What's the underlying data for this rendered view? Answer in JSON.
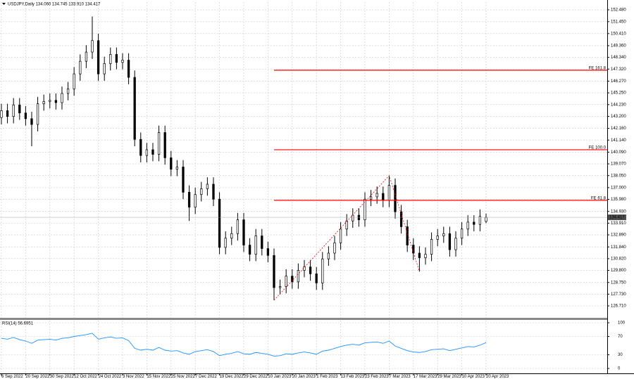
{
  "chart_data": [
    {
      "type": "candlestick",
      "title": "USDJPY,Daily  134.060 134.745 133.910 134.417",
      "open": [
        143.1,
        143.7,
        143.2,
        144.2,
        143.5,
        143.0,
        142.5,
        144.3,
        144.5,
        144.6,
        144.4,
        145.2,
        145.6,
        146.9,
        148.0,
        148.8,
        149.8,
        146.9,
        147.8,
        148.6,
        147.9,
        148.1,
        146.6,
        141.2,
        139.8,
        140.3,
        139.9,
        141.8,
        139.6,
        138.6,
        138.8,
        136.6,
        135.3,
        136.4,
        136.9,
        137.3,
        136.0,
        131.8,
        132.6,
        133.0,
        134.2,
        132.0,
        131.2,
        132.8,
        131.7,
        131.1,
        128.3,
        128.4,
        129.3,
        128.8,
        129.8,
        130.1,
        129.5,
        128.7,
        130.8,
        131.3,
        132.2,
        133.4,
        134.1,
        134.6,
        134.2,
        136.0,
        136.2,
        136.5,
        135.9,
        137.2,
        134.9,
        133.6,
        132.0,
        131.3,
        130.9,
        131.2,
        132.5,
        132.8,
        133.0,
        131.6,
        132.6,
        133.4,
        134.0,
        133.8,
        134.06
      ],
      "high": [
        144.3,
        144.3,
        144.8,
        144.8,
        144.1,
        143.6,
        144.9,
        145.1,
        145.2,
        145.2,
        145.8,
        146.2,
        147.5,
        148.6,
        149.4,
        151.9,
        150.4,
        148.4,
        149.2,
        149.2,
        148.7,
        148.7,
        147.2,
        141.8,
        140.9,
        140.9,
        142.4,
        142.4,
        140.2,
        139.4,
        139.4,
        137.2,
        137.0,
        137.5,
        137.9,
        137.9,
        136.6,
        133.2,
        133.6,
        134.8,
        134.8,
        132.6,
        133.4,
        133.4,
        132.3,
        131.7,
        129.0,
        129.9,
        129.9,
        130.4,
        130.7,
        130.7,
        130.1,
        131.4,
        131.9,
        132.8,
        134.0,
        134.7,
        135.2,
        135.2,
        136.6,
        136.8,
        137.1,
        137.1,
        138.05,
        137.8,
        135.5,
        134.2,
        132.6,
        131.9,
        131.8,
        133.1,
        133.4,
        133.6,
        133.6,
        133.2,
        134.0,
        134.6,
        134.6,
        135.1,
        134.745
      ],
      "low": [
        142.5,
        142.6,
        142.6,
        142.9,
        142.4,
        140.6,
        141.9,
        143.7,
        143.9,
        143.8,
        143.8,
        144.6,
        145.0,
        146.3,
        147.4,
        148.2,
        146.3,
        146.3,
        147.2,
        147.3,
        147.3,
        146.0,
        140.6,
        139.2,
        139.2,
        139.3,
        139.3,
        139.0,
        138.0,
        138.0,
        136.0,
        134.1,
        134.7,
        135.8,
        136.3,
        135.4,
        131.2,
        131.2,
        132.0,
        132.4,
        131.4,
        130.6,
        130.6,
        131.1,
        130.5,
        127.2,
        127.7,
        127.8,
        128.2,
        128.2,
        129.2,
        128.9,
        128.1,
        128.1,
        130.2,
        130.7,
        131.6,
        132.8,
        133.5,
        133.6,
        133.6,
        135.4,
        135.6,
        135.3,
        135.3,
        134.3,
        133.0,
        131.4,
        130.7,
        129.7,
        130.3,
        130.6,
        131.9,
        132.2,
        131.0,
        131.0,
        132.0,
        132.8,
        133.2,
        133.2,
        133.91
      ],
      "close": [
        143.7,
        143.2,
        144.2,
        143.5,
        143.0,
        142.5,
        144.3,
        144.5,
        144.6,
        144.4,
        145.2,
        145.6,
        146.9,
        148.0,
        148.8,
        149.8,
        146.9,
        147.8,
        148.6,
        147.9,
        148.1,
        146.6,
        141.2,
        139.8,
        140.3,
        139.9,
        141.8,
        139.6,
        138.6,
        138.8,
        136.6,
        135.3,
        136.4,
        136.9,
        137.3,
        136.0,
        131.8,
        132.6,
        133.0,
        134.2,
        132.0,
        131.2,
        132.8,
        131.7,
        131.1,
        128.3,
        128.4,
        129.3,
        128.8,
        129.8,
        130.1,
        129.5,
        128.7,
        130.8,
        131.3,
        132.2,
        133.4,
        134.1,
        134.6,
        134.2,
        136.0,
        136.2,
        136.5,
        135.9,
        137.2,
        134.9,
        133.6,
        132.0,
        131.3,
        130.9,
        131.2,
        132.5,
        132.8,
        133.0,
        131.6,
        132.6,
        133.4,
        134.0,
        133.8,
        134.5,
        134.417
      ],
      "up_color": "#ffffff",
      "down_color": "#000000",
      "outline_color": "#000000",
      "xlim": [
        -0.23,
        100
      ],
      "xticks": [
        {
          "value": 0,
          "label": "6 Sep 2022"
        },
        {
          "value": 4,
          "label": "20 Sep 2022"
        },
        {
          "value": 8,
          "label": "30 Sep 2022"
        },
        {
          "value": 12,
          "label": "12 Oct 2022"
        },
        {
          "value": 16,
          "label": "24 Oct 2022"
        },
        {
          "value": 20,
          "label": "3 Nov 2022"
        },
        {
          "value": 24,
          "label": "15 Nov 2022"
        },
        {
          "value": 28,
          "label": "25 Nov 2022"
        },
        {
          "value": 32,
          "label": "7 Dec 2022"
        },
        {
          "value": 36,
          "label": "19 Dec 2022"
        },
        {
          "value": 40,
          "label": "29 Dec 2022"
        },
        {
          "value": 44,
          "label": "10 Jan 2023"
        },
        {
          "value": 48,
          "label": "20 Jan 2023"
        },
        {
          "value": 52,
          "label": "1 Feb 2023"
        },
        {
          "value": 56,
          "label": "13 Feb 2023"
        },
        {
          "value": 60,
          "label": "23 Feb 2023"
        },
        {
          "value": 64,
          "label": "7 Mar 2023"
        },
        {
          "value": 68,
          "label": "17 Mar 2023"
        },
        {
          "value": 72,
          "label": "29 Mar 2023"
        },
        {
          "value": 76,
          "label": "10 Apr 2023"
        },
        {
          "value": 80,
          "label": "20 Apr 2023"
        }
      ],
      "ylim": [
        125.67,
        153.15
      ],
      "yticks": [
        {
          "value": 152.48,
          "label": "152.480"
        },
        {
          "value": 151.45,
          "label": "151.450"
        },
        {
          "value": 150.41,
          "label": "150.410"
        },
        {
          "value": 149.36,
          "label": "149.360"
        },
        {
          "value": 148.34,
          "label": "148.340"
        },
        {
          "value": 147.32,
          "label": "147.320"
        },
        {
          "value": 146.27,
          "label": "146.270"
        },
        {
          "value": 145.25,
          "label": "145.250"
        },
        {
          "value": 144.23,
          "label": "144.230"
        },
        {
          "value": 143.2,
          "label": "143.200"
        },
        {
          "value": 142.16,
          "label": "142.160"
        },
        {
          "value": 141.14,
          "label": "141.140"
        },
        {
          "value": 140.09,
          "label": "140.090"
        },
        {
          "value": 139.07,
          "label": "139.070"
        },
        {
          "value": 138.05,
          "label": "138.050"
        },
        {
          "value": 137,
          "label": "137.000"
        },
        {
          "value": 135.98,
          "label": "135.980"
        },
        {
          "value": 134.93,
          "label": "134.930"
        },
        {
          "value": 133.91,
          "label": "133.910"
        },
        {
          "value": 132.89,
          "label": "132.890"
        },
        {
          "value": 131.84,
          "label": "131.840"
        },
        {
          "value": 130.82,
          "label": "130.820"
        },
        {
          "value": 129.8,
          "label": "129.800"
        },
        {
          "value": 128.75,
          "label": "128.750"
        },
        {
          "value": 127.73,
          "label": "127.730"
        },
        {
          "value": 126.71,
          "label": "126.710"
        }
      ],
      "grid": true,
      "last_price": 134.417,
      "levels": [
        {
          "label": "FE 161.8",
          "value": 147.22
        },
        {
          "label": "FE 100.0",
          "value": 140.3
        },
        {
          "label": "FE 61.8",
          "value": 135.9
        }
      ],
      "levels_start": 45,
      "level_color": "#ff0000",
      "pattern": {
        "x": [
          45,
          64,
          69
        ],
        "values": [
          127.2,
          138.05,
          129.7
        ],
        "color": "#ff0000"
      }
    },
    {
      "type": "line",
      "title": "RSI(14) 56.6951",
      "color": "#1e90ff",
      "values": [
        66,
        64,
        68,
        63,
        60,
        55,
        62,
        63,
        64,
        62,
        66,
        67,
        70,
        72,
        74,
        77,
        64,
        67,
        69,
        66,
        67,
        61,
        44,
        40,
        42,
        40,
        46,
        40,
        38,
        39,
        34,
        31,
        37,
        39,
        41,
        37,
        28,
        31,
        33,
        37,
        32,
        31,
        35,
        33,
        31,
        27,
        28,
        32,
        31,
        34,
        36,
        34,
        31,
        38,
        40,
        44,
        48,
        51,
        53,
        51,
        56,
        57,
        58,
        55,
        60,
        49,
        44,
        39,
        36,
        35,
        37,
        41,
        42,
        43,
        39,
        42,
        45,
        48,
        47,
        51,
        56.6951
      ],
      "ylim": [
        -9.2,
        104.6
      ],
      "yticks": [
        0,
        30,
        70,
        100
      ],
      "grid": true
    }
  ]
}
